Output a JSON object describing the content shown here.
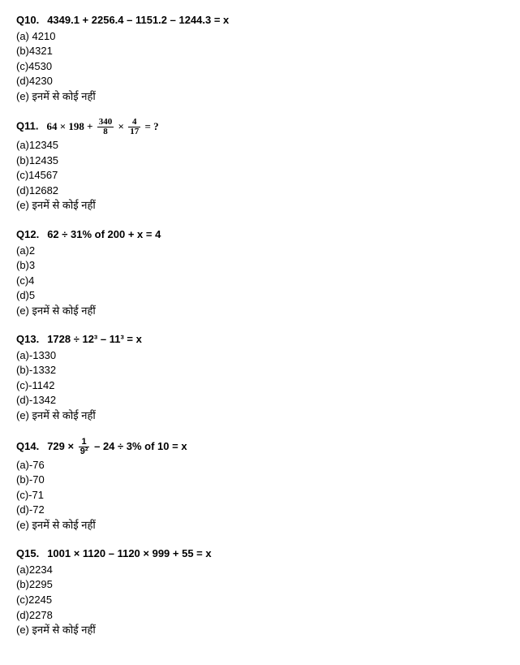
{
  "questions": [
    {
      "num": "Q10.",
      "text_html": "4349.1 + 2256.4 – 1151.2 – 1244.3 = x",
      "options": [
        "(a) 4210",
        "(b)4321",
        "(c)4530",
        "(d)4230",
        "(e) इनमें से कोई नहीं"
      ]
    },
    {
      "num": "Q11.",
      "text_html": "<span class='math'>64 × 198 + <span class='frac'><span class='num'>340</span><span class='den'>8</span></span> × <span class='frac'><span class='num'>4</span><span class='den'>17</span></span> = ?</span>",
      "options": [
        "(a)12345",
        "(b)12435",
        "(c)14567",
        "(d)12682",
        "(e) इनमें से कोई नहीं"
      ]
    },
    {
      "num": "Q12.",
      "text_html": "62 ÷ 31% of 200 + x = 4",
      "options": [
        "(a)2",
        "(b)3",
        "(c)4",
        "(d)5",
        "(e) इनमें से कोई नहीं"
      ]
    },
    {
      "num": "Q13.",
      "text_html": "1728 ÷ 12³ – 11³ = x",
      "options": [
        "(a)-1330",
        "(b)-1332",
        "(c)-1142",
        "(d)-1342",
        "(e) इनमें से कोई नहीं"
      ]
    },
    {
      "num": "Q14.",
      "text_html": "729 × <span class='frac'><span class='num'>1</span><span class='den'>9²</span></span> – 24 ÷ 3% of 10 = x",
      "options": [
        "(a)-76",
        "(b)-70",
        "(c)-71",
        "(d)-72",
        "(e) इनमें से कोई नहीं"
      ]
    },
    {
      "num": "Q15.",
      "text_html": "1001 × 1120 – 1120 × 999 + 55 = x",
      "options": [
        "(a)2234",
        "(b)2295",
        "(c)2245",
        "(d)2278",
        "(e) इनमें से कोई नहीं"
      ]
    }
  ]
}
